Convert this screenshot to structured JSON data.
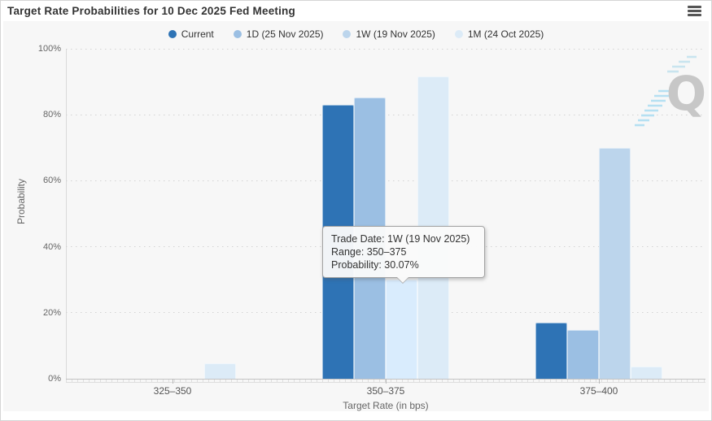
{
  "header": {
    "title": "Target Rate Probabilities for 10 Dec 2025 Fed Meeting"
  },
  "chart_data": {
    "type": "bar",
    "title": "Target Rate Probabilities for 10 Dec 2025 Fed Meeting",
    "categories": [
      "325–350",
      "350–375",
      "375–400"
    ],
    "series": [
      {
        "name": "Current",
        "color": "#2e73b5",
        "values": [
          0,
          83.0,
          17.0
        ]
      },
      {
        "name": "1D (25 Nov 2025)",
        "color": "#9bbfe3",
        "values": [
          0,
          85.2,
          14.8
        ]
      },
      {
        "name": "1W (19 Nov 2025)",
        "color": "#bcd5ec",
        "values": [
          0,
          30.07,
          69.93
        ]
      },
      {
        "name": "1M (24 Oct 2025)",
        "color": "#dcebf7",
        "values": [
          4.7,
          91.7,
          3.6
        ]
      }
    ],
    "xlabel": "Target Rate (in bps)",
    "ylabel": "Probability",
    "ylim": [
      0,
      100
    ],
    "yticks": [
      0,
      20,
      40,
      60,
      80,
      100
    ],
    "ytick_labels": [
      "0%",
      "20%",
      "40%",
      "60%",
      "80%",
      "100%"
    ],
    "grid": "dotted-horizontal",
    "legend_position": "top",
    "highlight": {
      "series": "1W (19 Nov 2025)",
      "category": "350–375",
      "hover_color": "#d9ecfd"
    }
  },
  "tooltip": {
    "trade_date": "Trade Date: 1W (19 Nov 2025)",
    "range": "Range: 350–375",
    "probability": "Probability: 30.07%"
  },
  "watermark": {
    "letter": "Q"
  },
  "colors": {
    "panel_background": "#f7f7f7",
    "title_text": "#333333",
    "axis_text": "#666666",
    "watermark_gray": "#c7c7c7",
    "watermark_blue": "#b5e0f2"
  }
}
